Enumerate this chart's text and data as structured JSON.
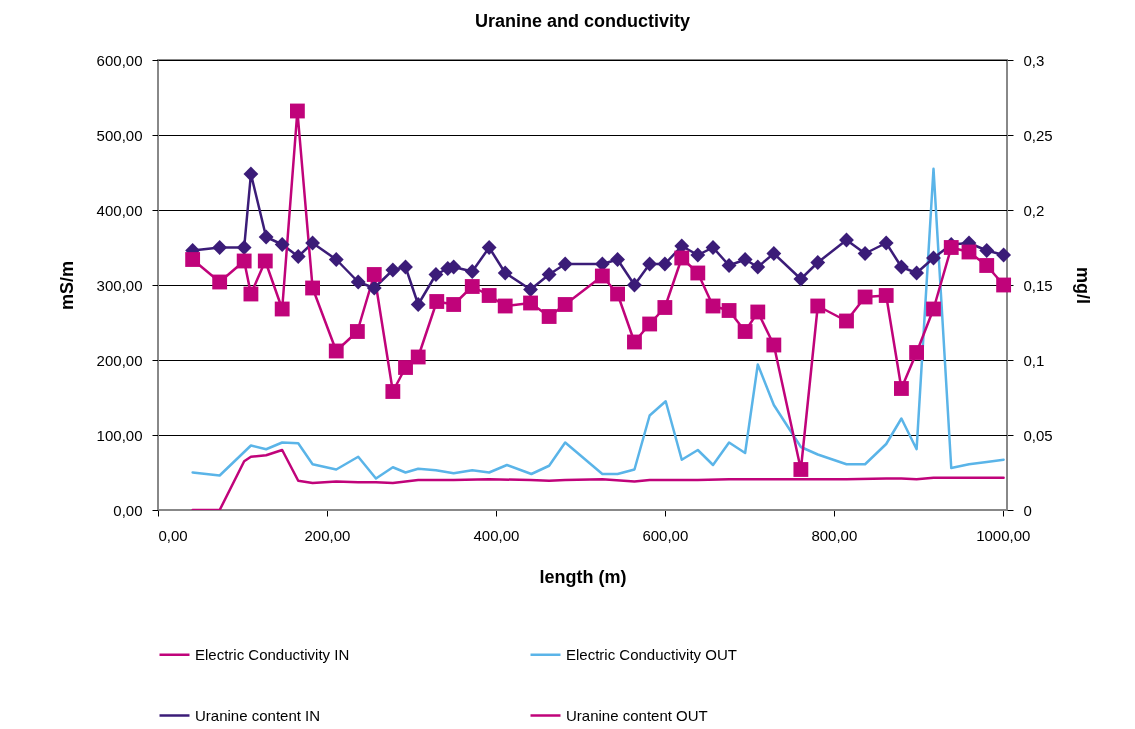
{
  "chart_data": {
    "type": "line",
    "title": "Uranine and conductivity",
    "xlabel": "length (m)",
    "ylabel": "mS/m",
    "y2label": "mg/l",
    "xlim": [
      0,
      1005
    ],
    "xticks": [
      {
        "value": 0,
        "label": "0,00"
      },
      {
        "value": 200,
        "label": "200,00"
      },
      {
        "value": 400,
        "label": "400,00"
      },
      {
        "value": 600,
        "label": "600,00"
      },
      {
        "value": 800,
        "label": "800,00"
      },
      {
        "value": 1000,
        "label": "1000,00"
      }
    ],
    "ylim": [
      0,
      600
    ],
    "yticks": [
      {
        "value": 0,
        "label": "0,00"
      },
      {
        "value": 100,
        "label": "100,00"
      },
      {
        "value": 200,
        "label": "200,00"
      },
      {
        "value": 300,
        "label": "300,00"
      },
      {
        "value": 400,
        "label": "400,00"
      },
      {
        "value": 500,
        "label": "500,00"
      },
      {
        "value": 600,
        "label": "600,00"
      }
    ],
    "y2lim": [
      0,
      0.3
    ],
    "y2ticks": [
      0,
      {
        "value": 0.05,
        "label": "0,05"
      },
      {
        "value": 0.1,
        "label": "0,1"
      },
      {
        "value": 0.15,
        "label": "0,15"
      },
      {
        "value": 0.2,
        "label": "0,2"
      },
      {
        "value": 0.25,
        "label": "0,25"
      },
      {
        "value": 0.3,
        "label": "0,3"
      }
    ],
    "grid": "y",
    "legend": "bottom",
    "series": [
      {
        "name": "Electric Conductivity IN",
        "color": "#c0037a",
        "marker": "none",
        "x": [
          41,
          73,
          102,
          110,
          128,
          147,
          166,
          183,
          211,
          237,
          258,
          278,
          308,
          350,
          392,
          441,
          463,
          482,
          526,
          564,
          582,
          639,
          676,
          710,
          761,
          815,
          862,
          880,
          898,
          918,
          1001
        ],
        "values": [
          0,
          0,
          65,
          71,
          73,
          80,
          39,
          36,
          38,
          37,
          37,
          36,
          40,
          40,
          41,
          40,
          39,
          40,
          41,
          38,
          40,
          40,
          41,
          41,
          41,
          41,
          42,
          42,
          41,
          43,
          43
        ]
      },
      {
        "name": "Electric Conductivity OUT",
        "color": "#5ab4e8",
        "marker": "none",
        "x": [
          41,
          73,
          110,
          128,
          147,
          166,
          183,
          211,
          237,
          258,
          278,
          293,
          308,
          329,
          350,
          372,
          392,
          413,
          442,
          463,
          482,
          526,
          544,
          564,
          582,
          601,
          620,
          639,
          657,
          676,
          695,
          710,
          729,
          761,
          781,
          815,
          837,
          862,
          880,
          898,
          918,
          939,
          960,
          981,
          1001
        ],
        "values": [
          50,
          46,
          86,
          81,
          90,
          89,
          61,
          54,
          71,
          42,
          57,
          50,
          55,
          53,
          49,
          53,
          50,
          60,
          48,
          59,
          90,
          48,
          48,
          54,
          126,
          145,
          67,
          80,
          60,
          90,
          76,
          194,
          140,
          84,
          74,
          61,
          61,
          88,
          122,
          81,
          455,
          56,
          61,
          64,
          67
        ]
      },
      {
        "name": "Uranine content IN",
        "color": "#3b1c78",
        "marker": "diamond",
        "axis": "y2",
        "x": [
          41,
          73,
          102,
          110,
          128,
          147,
          166,
          183,
          211,
          237,
          256,
          278,
          293,
          308,
          329,
          343,
          350,
          372,
          392,
          411,
          441,
          463,
          482,
          526,
          544,
          564,
          582,
          600,
          620,
          639,
          657,
          676,
          695,
          710,
          729,
          761,
          781,
          815,
          837,
          862,
          880,
          898,
          918,
          939,
          960,
          981,
          1001
        ],
        "values": [
          0.173,
          0.175,
          0.175,
          0.224,
          0.182,
          0.177,
          0.169,
          0.178,
          0.167,
          0.152,
          0.148,
          0.16,
          0.162,
          0.137,
          0.157,
          0.161,
          0.162,
          0.159,
          0.175,
          0.158,
          0.147,
          0.157,
          0.164,
          0.164,
          0.167,
          0.15,
          0.164,
          0.164,
          0.176,
          0.17,
          0.175,
          0.163,
          0.167,
          0.162,
          0.171,
          0.154,
          0.165,
          0.18,
          0.171,
          0.178,
          0.162,
          0.158,
          0.168,
          0.177,
          0.178,
          0.173,
          0.17
        ]
      },
      {
        "name": "Uranine content OUT",
        "color": "#c0037a",
        "marker": "square",
        "axis": "y2",
        "x": [
          41,
          73,
          102,
          110,
          127,
          147,
          165,
          183,
          211,
          236,
          256,
          278,
          293,
          308,
          330,
          350,
          372,
          392,
          411,
          441,
          463,
          482,
          526,
          544,
          564,
          582,
          600,
          620,
          639,
          657,
          676,
          695,
          710,
          729,
          761,
          781,
          815,
          837,
          862,
          880,
          898,
          918,
          939,
          960,
          981,
          1001
        ],
        "values": [
          0.167,
          0.152,
          0.166,
          0.144,
          0.166,
          0.134,
          0.266,
          0.148,
          0.106,
          0.119,
          0.157,
          0.079,
          0.095,
          0.102,
          0.139,
          0.137,
          0.149,
          0.143,
          0.136,
          0.138,
          0.129,
          0.137,
          0.156,
          0.144,
          0.112,
          0.124,
          0.135,
          0.168,
          0.158,
          0.136,
          0.133,
          0.119,
          0.132,
          0.11,
          0.027,
          0.136,
          0.126,
          0.142,
          0.143,
          0.081,
          0.105,
          0.134,
          0.175,
          0.172,
          0.163,
          0.15
        ]
      }
    ]
  }
}
